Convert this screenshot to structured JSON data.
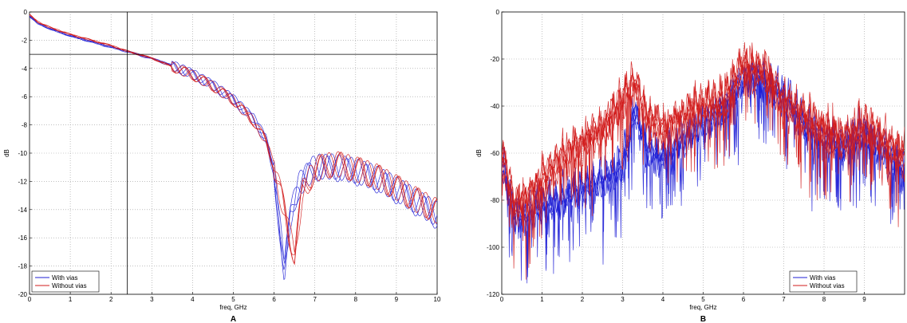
{
  "chart_data": [
    {
      "id": "A",
      "type": "line",
      "panel_label": "A",
      "xlabel": "freq, GHz",
      "ylabel": "dB",
      "xlim": [
        0,
        10
      ],
      "ylim": [
        -20,
        0
      ],
      "xticks": [
        0,
        1,
        2,
        3,
        4,
        5,
        6,
        7,
        8,
        9,
        10
      ],
      "yticks": [
        0,
        -2,
        -4,
        -6,
        -8,
        -10,
        -12,
        -14,
        -16,
        -18,
        -20
      ],
      "grid": true,
      "legend_position": "bottom-left",
      "markers": {
        "vertical_line_x": 2.4,
        "horizontal_line_y": -3
      },
      "series": [
        {
          "name": "With vias",
          "color": "#1f1fd6",
          "x": [
            0,
            0.2,
            0.5,
            1,
            1.5,
            2,
            2.4,
            3,
            3.5,
            4,
            4.5,
            5,
            5.5,
            5.8,
            6.0,
            6.15,
            6.25,
            6.4,
            6.6,
            7,
            7.5,
            8,
            8.5,
            9,
            9.5,
            10
          ],
          "y": [
            -0.3,
            -0.8,
            -1.2,
            -1.7,
            -2.1,
            -2.5,
            -2.8,
            -3.3,
            -3.8,
            -4.4,
            -5.2,
            -6.2,
            -7.6,
            -9.0,
            -11.5,
            -15.5,
            -18.4,
            -14.5,
            -12.3,
            -11.0,
            -11.0,
            -11.3,
            -11.8,
            -12.6,
            -13.5,
            -14.4
          ]
        },
        {
          "name": "Without vias",
          "color": "#d21b1b",
          "x": [
            0,
            0.2,
            0.5,
            1,
            1.5,
            2,
            2.4,
            3,
            3.5,
            4,
            4.5,
            5,
            5.5,
            5.8,
            6.0,
            6.2,
            6.35,
            6.5,
            6.7,
            7,
            7.5,
            8,
            8.5,
            9,
            9.5,
            10
          ],
          "y": [
            -0.2,
            -0.7,
            -1.1,
            -1.6,
            -2.0,
            -2.4,
            -2.8,
            -3.3,
            -3.9,
            -4.5,
            -5.3,
            -6.3,
            -7.8,
            -9.2,
            -11.0,
            -13.5,
            -15.5,
            -17.2,
            -12.8,
            -11.2,
            -10.8,
            -11.2,
            -11.7,
            -12.5,
            -13.4,
            -14.2
          ]
        }
      ]
    },
    {
      "id": "B",
      "type": "line",
      "panel_label": "B",
      "xlabel": "freq, GHz",
      "ylabel": "dB",
      "xlim": [
        0,
        10
      ],
      "ylim": [
        -120,
        0
      ],
      "xticks": [
        0,
        1,
        2,
        3,
        4,
        5,
        6,
        7,
        8,
        9
      ],
      "yticks": [
        0,
        -20,
        -40,
        -60,
        -80,
        -100,
        -120
      ],
      "grid": true,
      "legend_position": "bottom-right",
      "series": [
        {
          "name": "With vias",
          "color": "#1f1fd6",
          "x": [
            0,
            0.3,
            0.6,
            1,
            1.5,
            2,
            2.5,
            3,
            3.3,
            3.6,
            4,
            4.5,
            5,
            5.5,
            6,
            6.3,
            6.6,
            7,
            7.5,
            8,
            8.5,
            9,
            9.5,
            10
          ],
          "y": [
            -65,
            -85,
            -88,
            -82,
            -80,
            -75,
            -72,
            -65,
            -42,
            -58,
            -62,
            -55,
            -48,
            -42,
            -30,
            -28,
            -32,
            -36,
            -48,
            -55,
            -58,
            -52,
            -60,
            -68
          ]
        },
        {
          "name": "Without vias",
          "color": "#d21b1b",
          "x": [
            0,
            0.3,
            0.6,
            1,
            1.5,
            2,
            2.5,
            2.9,
            3.3,
            3.6,
            4,
            4.5,
            5,
            5.5,
            6,
            6.2,
            6.6,
            7,
            7.5,
            8,
            8.5,
            9,
            9.5,
            10
          ],
          "y": [
            -60,
            -82,
            -80,
            -72,
            -62,
            -56,
            -50,
            -40,
            -30,
            -45,
            -50,
            -45,
            -40,
            -38,
            -22,
            -24,
            -26,
            -38,
            -44,
            -50,
            -54,
            -48,
            -55,
            -62
          ]
        }
      ]
    }
  ]
}
